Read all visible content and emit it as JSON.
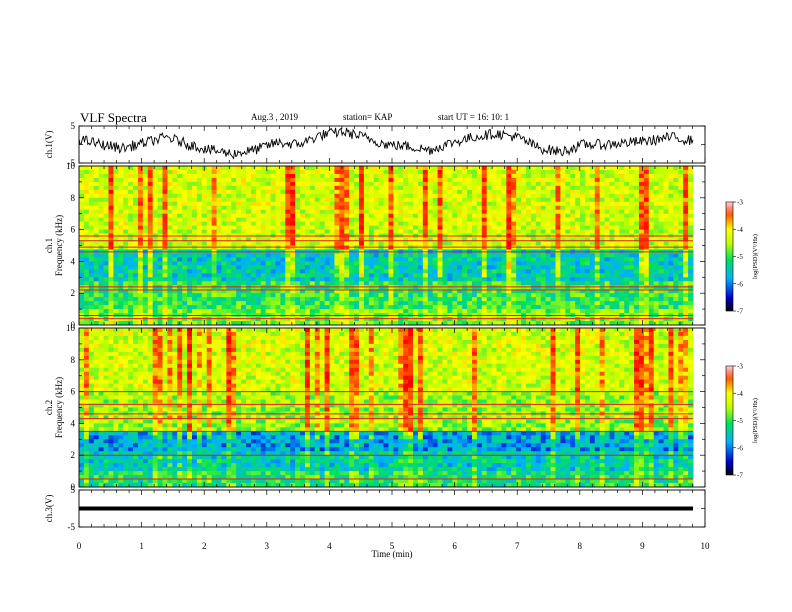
{
  "header": {
    "title": "VLF Spectra",
    "date": "Aug.3  , 2019",
    "station": "station= KAP",
    "start": "start  UT  =    16: 10: 1"
  },
  "chart_data": [
    {
      "type": "line",
      "ylabel": "ch.1(V)",
      "ylim": [
        -5,
        5
      ],
      "yticks": [
        "5",
        "-5"
      ],
      "xlim": [
        0,
        10
      ],
      "series": [
        {
          "description_only": false,
          "values_estimate": [
            1.5,
            0.0,
            -1.0,
            0.5,
            2.0,
            0.0,
            -1.5,
            -2.5,
            -1.5,
            0.5,
            0.0,
            2.5,
            3.5,
            2.0,
            0.0,
            -0.5,
            -1.5,
            0.5,
            2.0,
            3.0,
            2.0,
            -1.0,
            -2.0,
            0.0,
            0.0,
            0.5,
            1.0,
            2.0,
            1.0
          ]
        }
      ],
      "color": "#000000"
    },
    {
      "type": "heatmap",
      "ylabel_lines": [
        "ch.1",
        "Frequency  (kHz)"
      ],
      "ylim": [
        0,
        10
      ],
      "yticks": [
        "0",
        "2",
        "4",
        "6",
        "8",
        "10"
      ],
      "xlim": [
        0,
        10
      ],
      "colorbar": {
        "label": "log(PSD)(V²/Hz)",
        "ticks": [
          "-3",
          "-4",
          "-5",
          "-6",
          "-7"
        ],
        "range": [
          -7,
          -3
        ]
      }
    },
    {
      "type": "heatmap",
      "ylabel_lines": [
        "ch.2",
        "Frequency  (kHz)"
      ],
      "ylim": [
        0,
        10
      ],
      "yticks": [
        "0",
        "2",
        "4",
        "6",
        "8",
        "10"
      ],
      "xlim": [
        0,
        10
      ],
      "colorbar": {
        "label": "log(PSD)(V²/Hz)",
        "ticks": [
          "-3",
          "-4",
          "-5",
          "-6",
          "-7"
        ],
        "range": [
          -7,
          -3
        ]
      }
    },
    {
      "type": "line",
      "ylabel": "ch.3(V)",
      "ylim": [
        -5,
        5
      ],
      "yticks": [
        "5",
        "-5"
      ],
      "xlim": [
        0,
        10
      ],
      "series": [
        {
          "values_estimate": [
            0,
            0
          ]
        }
      ],
      "xlabel": "Time  (min)",
      "xticks": [
        "0",
        "1",
        "2",
        "3",
        "4",
        "5",
        "6",
        "7",
        "8",
        "9",
        "10"
      ]
    }
  ]
}
